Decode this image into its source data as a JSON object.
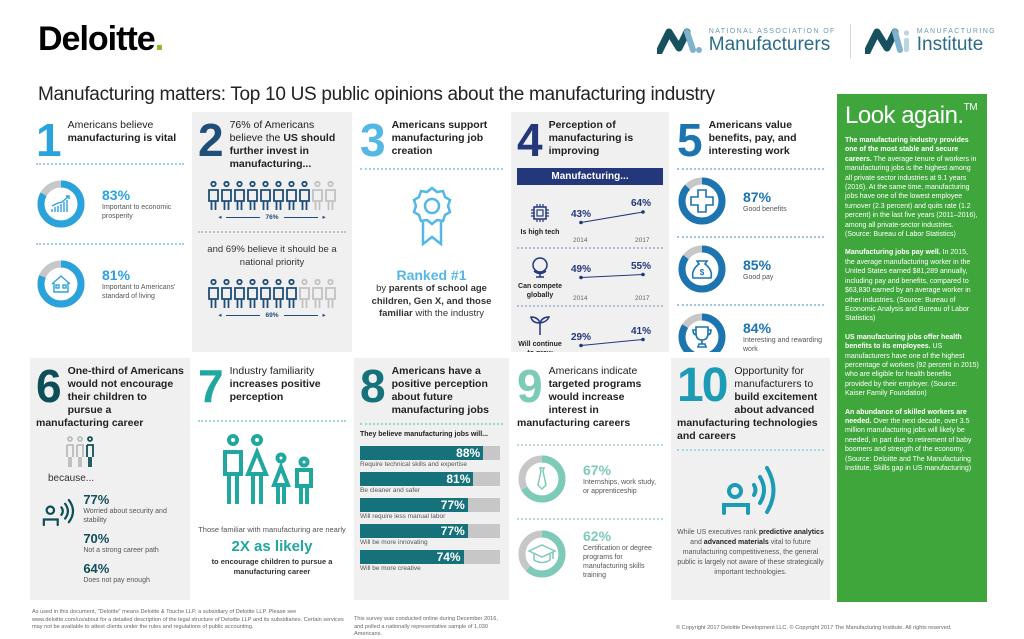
{
  "header": {
    "brand": "Deloitte",
    "brand_dot": ".",
    "logos": [
      {
        "small": "NATIONAL ASSOCIATION OF",
        "big": "Manufacturers"
      },
      {
        "small": "MANUFACTURING",
        "big": "Institute"
      }
    ],
    "title": "Manufacturing matters: Top 10 US public opinions about the manufacturing industry"
  },
  "colors": {
    "light_blue": "#2aa3dc",
    "navy": "#1e4e79",
    "dark_navy": "#23377a",
    "mid_blue": "#1c75b0",
    "dark_teal": "#0e4e57",
    "teal": "#1fa7a0",
    "teal8": "#16727a",
    "mint": "#7ecab8",
    "teal10": "#1c9bb5",
    "green": "#3fa63c",
    "gray_track": "#c7c7c7"
  },
  "cells": {
    "c1": {
      "num": "1",
      "head_plain": "Americans believe",
      "head_bold": "manufacturing is vital",
      "stats": [
        {
          "pct": "83%",
          "label": "Important to economic prosperity",
          "value": 83,
          "icon": "growth-chart-icon"
        },
        {
          "pct": "81%",
          "label": "Important to Americans' standard of living",
          "value": 81,
          "icon": "house-icon"
        }
      ]
    },
    "c2": {
      "num": "2",
      "head_plain": "76% of Americans believe the ",
      "head_bold": "US should further invest in manufacturing...",
      "first_pct": "76%",
      "first_filled": 8,
      "mid_text": "and 69% believe it should be a national priority",
      "second_pct": "69%",
      "second_filled": 7,
      "total": 10
    },
    "c3": {
      "num": "3",
      "head_bold": "Americans support manufacturing job creation",
      "ranked": "Ranked #1",
      "by": "by ",
      "by_bold": "parents of school age children, Gen X, and those familiar",
      "by_end": " with the industry"
    },
    "c4": {
      "num": "4",
      "head_bold": "Perception of manufacturing is improving",
      "banner": "Manufacturing...",
      "rows": [
        {
          "label": "Is high tech",
          "icon": "chip-icon",
          "v2014": "43%",
          "v2017": "64%"
        },
        {
          "label": "Can compete globally",
          "icon": "globe-icon",
          "v2014": "49%",
          "v2017": "55%"
        },
        {
          "label": "Will continue to grow",
          "icon": "sprout-icon",
          "v2014": "29%",
          "v2017": "41%"
        }
      ],
      "year_a": "2014",
      "year_b": "2017"
    },
    "c5": {
      "num": "5",
      "head_bold": "Americans value benefits, pay, and interesting work",
      "stats": [
        {
          "pct": "87%",
          "label": "Good benefits",
          "value": 87,
          "icon": "medical-cross-icon"
        },
        {
          "pct": "85%",
          "label": "Good pay",
          "value": 85,
          "icon": "money-bag-icon"
        },
        {
          "pct": "84%",
          "label": "Interesting and rewarding work",
          "value": 84,
          "icon": "trophy-icon"
        }
      ]
    },
    "c6": {
      "num": "6",
      "head_bold": "One-third of Americans would not encourage their children to pursue a manufacturing career",
      "because": "because...",
      "reasons": [
        {
          "pct": "77%",
          "label": "Worried about security and stability"
        },
        {
          "pct": "70%",
          "label": "Not a strong career path"
        },
        {
          "pct": "64%",
          "label": "Does not pay enough"
        }
      ]
    },
    "c7": {
      "num": "7",
      "head_plain": "Industry familiarity",
      "head_bold": "increases positive perception",
      "small_text": "Those familiar with manufacturing are nearly",
      "big": "2X as likely",
      "bold_text": "to encourage children to pursue a manufacturing career"
    },
    "c8": {
      "num": "8",
      "head_bold": "Americans have a positive perception about future manufacturing jobs",
      "sub": "They believe manufacturing jobs will...",
      "bars": [
        {
          "pct": "88%",
          "value": 88,
          "label": "Require technical skills and expertise"
        },
        {
          "pct": "81%",
          "value": 81,
          "label": "Be cleaner and safer"
        },
        {
          "pct": "77%",
          "value": 77,
          "label": "Will require less manual labor"
        },
        {
          "pct": "77%",
          "value": 77,
          "label": "Will be more innovating"
        },
        {
          "pct": "74%",
          "value": 74,
          "label": "Will be more creative"
        }
      ]
    },
    "c9": {
      "num": "9",
      "head_plain": "Americans indicate",
      "head_bold": "targeted programs would increase interest in manufacturing careers",
      "stats": [
        {
          "pct": "67%",
          "label": "Internships, work study, or apprenticeship",
          "value": 67,
          "icon": "tie-icon"
        },
        {
          "pct": "62%",
          "label": "Certification or degree programs for manufacturing skills training",
          "value": 62,
          "icon": "graduation-cap-icon"
        }
      ]
    },
    "c10": {
      "num": "10",
      "head_plain": "Opportunity for manufacturers to",
      "head_bold": "build excitement about advanced manufacturing technologies and careers",
      "t1": "While US executives rank ",
      "b1": "predictive analytics",
      "t2": " and ",
      "b2": "advanced materials",
      "t3": " vital to future manufacturing competitiveness, the general public is largely not aware of these strategically important technologies."
    }
  },
  "green_panel": {
    "title": "Look again.",
    "tm": "TM",
    "paras": [
      {
        "bold": "The manufacturing industry provides one of the most stable and secure careers.",
        "text": " The average tenure of workers in manufacturing jobs is the highest among all private sector industries at 9.1 years (2016). At the same time, manufacturing jobs have one of the lowest employee turnover (2.3 percent) and quits rate (1.2 percent) in the last five years (2011–2016), among all private-sector industries. (Source: Bureau of Labor Statistics)"
      },
      {
        "bold": "Manufacturing jobs pay well.",
        "text": " In 2015, the average manufacturing worker in the United States earned $81,289 annually, including pay and benefits, compared to $63,830 earned by an average worker in other industries. (Source: Bureau of Economic Analysis and Bureau of Labor Statistics)"
      },
      {
        "bold": "US manufacturing jobs offer health benefits to its employees.",
        "text": " US manufacturers have one of the highest percentage of workers (92 percent in 2015) who are eligible for health benefits provided by their employer. (Source: Kaiser Family Foundation)"
      },
      {
        "bold": "An abundance of skilled workers are needed.",
        "text": " Over the next decade, over 3.5 million manufacturing jobs will likely be needed, in part due to retirement of baby boomers and strength of the economy. (Source: Deloitte and The Manufacturing Institute, Skills gap in US manufacturing)"
      }
    ]
  },
  "footer": {
    "legal": "As used in this document, \"Deloitte\" means Deloitte & Touche LLP, a subsidiary of Deloitte LLP. Please see www.deloitte.com/us/about for a detailed description of the legal structure of Deloitte LLP and its subsidiaries. Certain services may not be available to attest clients under the rules and regulations of public accounting.",
    "survey": "This survey was conducted online during December 2016, and polled a nationally representative sample of 1,030 Americans.",
    "copyright": "© Copyright 2017 Deloitte Development LLC. © Copyright 2017 The Manufacturing Institute. All rights reserved."
  }
}
